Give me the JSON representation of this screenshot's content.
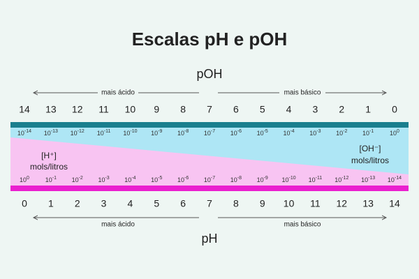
{
  "title": "Escalas pH e pOH",
  "top_scale": {
    "label": "pOH",
    "left_arrow": "mais ácido",
    "right_arrow": "mais básico",
    "numbers": [
      14,
      13,
      12,
      11,
      10,
      9,
      8,
      7,
      6,
      5,
      4,
      3,
      2,
      1,
      0
    ],
    "base": "10",
    "exponents": [
      "-14",
      "-13",
      "-12",
      "-11",
      "-10",
      "-9",
      "-8",
      "-7",
      "-6",
      "-5",
      "-4",
      "-3",
      "-2",
      "-1",
      "0"
    ]
  },
  "bottom_scale": {
    "label": "pH",
    "left_arrow": "mais ácido",
    "right_arrow": "mais básico",
    "numbers": [
      0,
      1,
      2,
      3,
      4,
      5,
      6,
      7,
      8,
      9,
      10,
      11,
      12,
      13,
      14
    ],
    "base": "10",
    "exponents": [
      "0",
      "-1",
      "-2",
      "-3",
      "-4",
      "-5",
      "-6",
      "-7",
      "-8",
      "-9",
      "-10",
      "-11",
      "-12",
      "-13",
      "-14"
    ]
  },
  "left_note": {
    "ion": "[H⁺]",
    "unit": "mols/litros"
  },
  "right_note": {
    "ion": "[OH⁻]",
    "unit": "mols/litros"
  }
}
